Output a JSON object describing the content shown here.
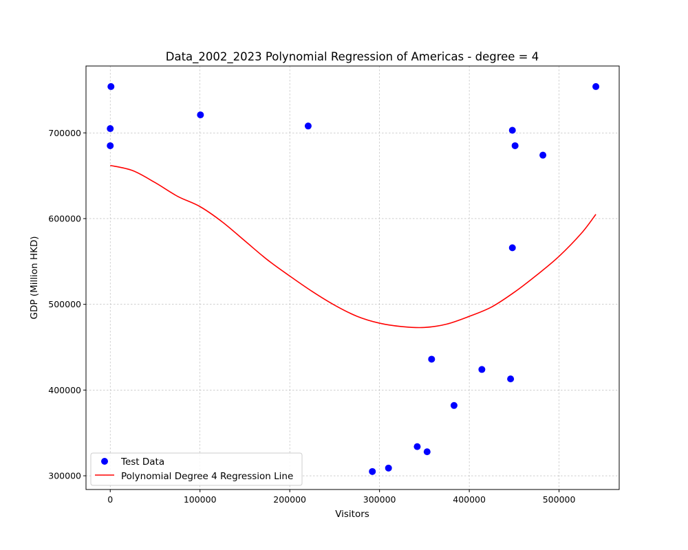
{
  "chart_data": {
    "type": "scatter",
    "title": "Data_2002_2023 Polynomial Regression of Americas - degree = 4",
    "xlabel": "Visitors",
    "ylabel": "GDP (Million HKD)",
    "xlim": [
      -27000,
      567000
    ],
    "ylim": [
      284000,
      778000
    ],
    "xticks": [
      0,
      100000,
      200000,
      300000,
      400000,
      500000
    ],
    "xtick_labels": [
      "0",
      "100000",
      "200000",
      "300000",
      "400000",
      "500000"
    ],
    "yticks": [
      300000,
      400000,
      500000,
      600000,
      700000
    ],
    "ytick_labels": [
      "300000",
      "400000",
      "500000",
      "600000",
      "700000"
    ],
    "grid": true,
    "legend_position": "bottom-left",
    "series": [
      {
        "name": "Test Data",
        "kind": "scatter",
        "color": "#0000ff",
        "points": [
          [
            800,
            754000
          ],
          [
            0,
            705000
          ],
          [
            0,
            685000
          ],
          [
            100500,
            721000
          ],
          [
            220500,
            708000
          ],
          [
            448000,
            703000
          ],
          [
            451000,
            685000
          ],
          [
            482000,
            674000
          ],
          [
            541000,
            754000
          ],
          [
            448000,
            566000
          ],
          [
            358000,
            436000
          ],
          [
            414000,
            424000
          ],
          [
            446000,
            413000
          ],
          [
            383000,
            382000
          ],
          [
            342000,
            334000
          ],
          [
            353000,
            328000
          ],
          [
            310000,
            309000
          ],
          [
            292000,
            305000
          ]
        ]
      },
      {
        "name": "Polynomial Degree 4 Regression Line",
        "kind": "line",
        "color": "#ff0000",
        "points": [
          [
            0,
            662000
          ],
          [
            25000,
            656000
          ],
          [
            50000,
            642000
          ],
          [
            75000,
            626000
          ],
          [
            100000,
            614000
          ],
          [
            125000,
            596000
          ],
          [
            150000,
            574000
          ],
          [
            175000,
            552000
          ],
          [
            200000,
            533000
          ],
          [
            225000,
            515000
          ],
          [
            250000,
            499000
          ],
          [
            275000,
            486000
          ],
          [
            300000,
            478000
          ],
          [
            325000,
            474000
          ],
          [
            350000,
            473000
          ],
          [
            375000,
            477000
          ],
          [
            400000,
            486000
          ],
          [
            425000,
            497000
          ],
          [
            450000,
            514000
          ],
          [
            475000,
            534000
          ],
          [
            500000,
            556000
          ],
          [
            525000,
            583000
          ],
          [
            541000,
            605000
          ]
        ]
      }
    ]
  }
}
